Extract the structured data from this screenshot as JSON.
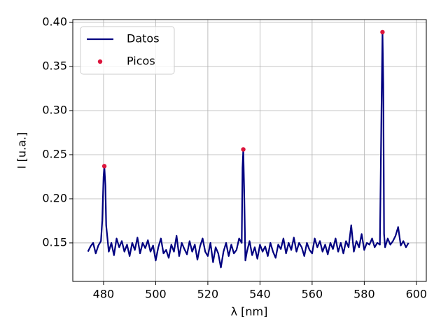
{
  "chart_data": {
    "type": "line",
    "xlabel": "λ [nm]",
    "ylabel": "I [u.a.]",
    "xlim": [
      468.2,
      603.8
    ],
    "ylim": [
      0.1063,
      0.4032
    ],
    "xticks": [
      480,
      500,
      520,
      540,
      560,
      580,
      600
    ],
    "yticks": [
      0.15,
      {
        "value": 0.2,
        "label": "0.20"
      },
      0.25,
      {
        "value": 0.3,
        "label": "0.30"
      },
      0.35,
      {
        "value": 0.4,
        "label": "0.40"
      }
    ],
    "grid": true,
    "legend": "upper left",
    "series": [
      {
        "name": "Datos",
        "type": "line",
        "color": "#000080",
        "x": [
          474,
          475,
          476,
          477,
          478,
          479,
          479.5,
          480,
          480.3,
          480.7,
          481,
          482,
          483,
          484,
          485,
          486,
          487,
          488,
          489,
          490,
          491,
          492,
          493,
          494,
          495,
          496,
          497,
          498,
          499,
          500,
          501,
          502,
          503,
          504,
          505,
          506,
          507,
          508,
          509,
          510,
          511,
          512,
          513,
          514,
          515,
          516,
          517,
          518,
          519,
          520,
          521,
          522,
          523,
          524,
          525,
          526,
          527,
          528,
          529,
          530,
          531,
          532,
          533,
          533.3,
          533.6,
          534,
          534.4,
          535,
          536,
          537,
          538,
          539,
          540,
          541,
          542,
          543,
          544,
          545,
          546,
          547,
          548,
          549,
          550,
          551,
          552,
          553,
          554,
          555,
          556,
          557,
          558,
          559,
          560,
          561,
          562,
          563,
          564,
          565,
          566,
          567,
          568,
          569,
          570,
          571,
          572,
          573,
          574,
          575,
          576,
          577,
          578,
          579,
          580,
          581,
          582,
          583,
          584,
          585,
          586,
          586.6,
          587,
          587.3,
          587.6,
          588,
          589,
          590,
          591,
          592,
          593,
          594,
          595,
          596,
          597
        ],
        "values": [
          0.14,
          0.146,
          0.15,
          0.138,
          0.147,
          0.152,
          0.175,
          0.225,
          0.237,
          0.215,
          0.17,
          0.14,
          0.15,
          0.136,
          0.155,
          0.145,
          0.152,
          0.14,
          0.148,
          0.135,
          0.15,
          0.142,
          0.156,
          0.138,
          0.15,
          0.144,
          0.153,
          0.14,
          0.147,
          0.13,
          0.145,
          0.155,
          0.138,
          0.142,
          0.133,
          0.148,
          0.14,
          0.158,
          0.135,
          0.15,
          0.143,
          0.137,
          0.152,
          0.14,
          0.148,
          0.131,
          0.146,
          0.155,
          0.14,
          0.135,
          0.15,
          0.128,
          0.145,
          0.138,
          0.122,
          0.14,
          0.15,
          0.135,
          0.148,
          0.138,
          0.142,
          0.155,
          0.15,
          0.235,
          0.256,
          0.2,
          0.13,
          0.14,
          0.152,
          0.136,
          0.145,
          0.132,
          0.148,
          0.14,
          0.146,
          0.135,
          0.15,
          0.14,
          0.133,
          0.148,
          0.143,
          0.155,
          0.138,
          0.15,
          0.142,
          0.156,
          0.14,
          0.15,
          0.145,
          0.135,
          0.15,
          0.142,
          0.138,
          0.155,
          0.145,
          0.152,
          0.14,
          0.148,
          0.137,
          0.15,
          0.143,
          0.155,
          0.14,
          0.15,
          0.138,
          0.152,
          0.145,
          0.17,
          0.14,
          0.152,
          0.145,
          0.16,
          0.142,
          0.15,
          0.148,
          0.155,
          0.145,
          0.15,
          0.148,
          0.3,
          0.389,
          0.33,
          0.16,
          0.145,
          0.155,
          0.148,
          0.152,
          0.158,
          0.168,
          0.147,
          0.152,
          0.145,
          0.15
        ]
      },
      {
        "name": "Picos",
        "type": "scatter",
        "color": "#dc143c",
        "x": [
          480.3,
          533.6,
          587
        ],
        "values": [
          0.237,
          0.256,
          0.389
        ]
      }
    ]
  }
}
